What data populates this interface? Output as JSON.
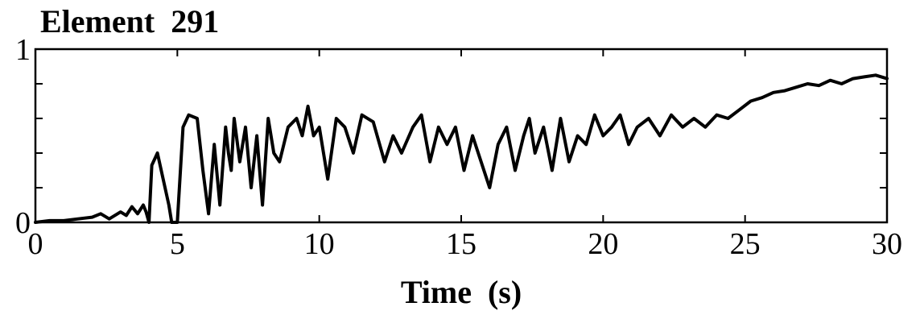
{
  "chart_data": {
    "type": "line",
    "title": "Element  291",
    "xlabel": "Time  (s)",
    "ylabel": "",
    "xlim": [
      0,
      30
    ],
    "ylim": [
      0,
      1
    ],
    "grid": false,
    "legend": "none",
    "line_color": "#000000",
    "x_ticks": [
      0,
      5,
      10,
      15,
      20,
      25,
      30
    ],
    "x_tick_labels": [
      "0",
      "5",
      "10",
      "15",
      "20",
      "25",
      "30"
    ],
    "y_ticks": [
      0,
      0.2,
      0.4,
      0.6,
      0.8,
      1
    ],
    "y_tick_labels": [
      "0",
      "",
      "",
      "",
      "",
      "1"
    ],
    "series": [
      {
        "x": [
          0,
          0.5,
          1.0,
          1.5,
          2.0,
          2.3,
          2.6,
          3.0,
          3.2,
          3.4,
          3.6,
          3.8,
          3.9,
          4.0,
          4.1,
          4.3,
          4.5,
          4.7,
          4.8,
          5.0,
          5.2,
          5.4,
          5.7,
          5.9,
          6.1,
          6.3,
          6.5,
          6.7,
          6.8,
          6.9,
          7.0,
          7.2,
          7.4,
          7.6,
          7.8,
          8.0,
          8.2,
          8.4,
          8.6,
          8.9,
          9.2,
          9.4,
          9.6,
          9.8,
          10.0,
          10.3,
          10.6,
          10.9,
          11.2,
          11.5,
          11.9,
          12.3,
          12.6,
          12.9,
          13.3,
          13.6,
          13.9,
          14.2,
          14.5,
          14.8,
          15.1,
          15.4,
          15.7,
          16.0,
          16.3,
          16.6,
          16.9,
          17.2,
          17.4,
          17.6,
          17.9,
          18.2,
          18.5,
          18.8,
          19.1,
          19.4,
          19.7,
          20.0,
          20.3,
          20.6,
          20.9,
          21.2,
          21.6,
          22.0,
          22.4,
          22.8,
          23.2,
          23.6,
          24.0,
          24.4,
          24.8,
          25.2,
          25.6,
          26.0,
          26.4,
          26.8,
          27.2,
          27.6,
          28.0,
          28.4,
          28.8,
          29.2,
          29.6,
          30.0
        ],
        "y": [
          0.0,
          0.01,
          0.01,
          0.02,
          0.03,
          0.05,
          0.02,
          0.06,
          0.04,
          0.09,
          0.05,
          0.1,
          0.06,
          0.0,
          0.33,
          0.4,
          0.25,
          0.1,
          0.0,
          0.0,
          0.55,
          0.62,
          0.6,
          0.3,
          0.05,
          0.45,
          0.1,
          0.55,
          0.4,
          0.3,
          0.6,
          0.35,
          0.55,
          0.2,
          0.5,
          0.1,
          0.6,
          0.4,
          0.35,
          0.55,
          0.6,
          0.5,
          0.67,
          0.5,
          0.55,
          0.25,
          0.6,
          0.55,
          0.4,
          0.62,
          0.58,
          0.35,
          0.5,
          0.4,
          0.55,
          0.62,
          0.35,
          0.55,
          0.45,
          0.55,
          0.3,
          0.5,
          0.35,
          0.2,
          0.45,
          0.55,
          0.3,
          0.5,
          0.6,
          0.4,
          0.55,
          0.3,
          0.6,
          0.35,
          0.5,
          0.45,
          0.62,
          0.5,
          0.55,
          0.62,
          0.45,
          0.55,
          0.6,
          0.5,
          0.62,
          0.55,
          0.6,
          0.55,
          0.62,
          0.6,
          0.65,
          0.7,
          0.72,
          0.75,
          0.76,
          0.78,
          0.8,
          0.79,
          0.82,
          0.8,
          0.83,
          0.84,
          0.85,
          0.83
        ]
      }
    ]
  }
}
